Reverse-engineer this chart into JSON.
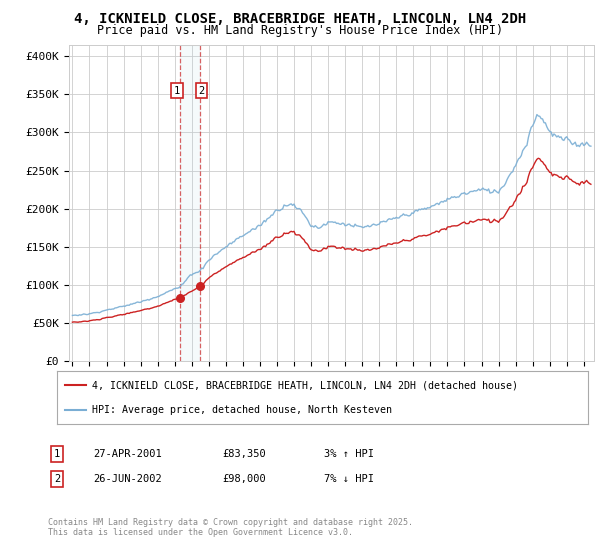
{
  "title_line1": "4, ICKNIELD CLOSE, BRACEBRIDGE HEATH, LINCOLN, LN4 2DH",
  "title_line2": "Price paid vs. HM Land Registry's House Price Index (HPI)",
  "ylabel_ticks": [
    "£0",
    "£50K",
    "£100K",
    "£150K",
    "£200K",
    "£250K",
    "£300K",
    "£350K",
    "£400K"
  ],
  "ytick_values": [
    0,
    50000,
    100000,
    150000,
    200000,
    250000,
    300000,
    350000,
    400000
  ],
  "ylim": [
    0,
    415000
  ],
  "background_color": "#ffffff",
  "grid_color": "#cccccc",
  "hpi_color": "#7aaed4",
  "price_color": "#cc2222",
  "purchase1_date": 2001.32,
  "purchase2_date": 2002.48,
  "purchase1_price": 83350,
  "purchase2_price": 98000,
  "legend_line1": "4, ICKNIELD CLOSE, BRACEBRIDGE HEATH, LINCOLN, LN4 2DH (detached house)",
  "legend_line2": "HPI: Average price, detached house, North Kesteven",
  "table_row1": [
    "1",
    "27-APR-2001",
    "£83,350",
    "3% ↑ HPI"
  ],
  "table_row2": [
    "2",
    "26-JUN-2002",
    "£98,000",
    "7% ↓ HPI"
  ],
  "footnote": "Contains HM Land Registry data © Crown copyright and database right 2025.\nThis data is licensed under the Open Government Licence v3.0."
}
